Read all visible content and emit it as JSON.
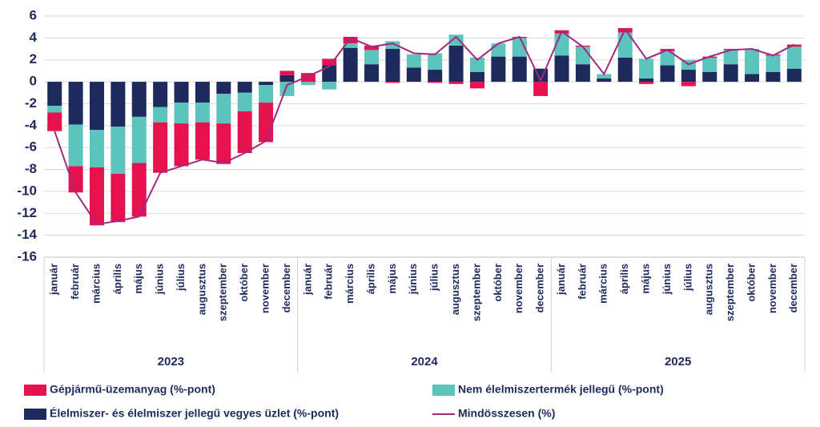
{
  "chart_data": {
    "type": "bar",
    "categories": [
      "január",
      "február",
      "március",
      "április",
      "május",
      "június",
      "július",
      "augusztus",
      "szeptember",
      "október",
      "november",
      "december",
      "január",
      "február",
      "március",
      "április",
      "május",
      "június",
      "július",
      "augusztus",
      "szeptember",
      "október",
      "november",
      "december",
      "január",
      "február",
      "március",
      "április",
      "május",
      "június",
      "július",
      "augusztus",
      "szeptember",
      "október",
      "november",
      "december"
    ],
    "groups": [
      "2023",
      "2024",
      "2025"
    ],
    "series": [
      {
        "name": "Gépjármű-üzemanyag (%-pont)",
        "type": "bar",
        "color": "#e5124f",
        "values": [
          -1.7,
          -2.4,
          -5.3,
          -4.4,
          -4.9,
          -4.6,
          -3.9,
          -3.4,
          -3.7,
          -3.8,
          -3.6,
          0.4,
          0.8,
          0.6,
          0.6,
          0.4,
          -0.1,
          0.0,
          -0.1,
          -0.2,
          -0.6,
          0.0,
          0.1,
          -1.3,
          0.3,
          0.1,
          0.0,
          0.4,
          -0.2,
          0.2,
          -0.4,
          0.1,
          0.1,
          0.0,
          0.1,
          0.2
        ]
      },
      {
        "name": "Nem élelmiszertermék jellegű (%-pont)",
        "type": "bar",
        "color": "#5cc3bd",
        "values": [
          -0.6,
          -3.8,
          -3.4,
          -4.3,
          -4.2,
          -1.4,
          -1.9,
          -1.8,
          -2.7,
          -1.7,
          -1.6,
          -1.3,
          -0.3,
          -0.7,
          0.4,
          1.3,
          0.7,
          1.2,
          1.5,
          1.0,
          1.3,
          1.2,
          1.7,
          0.0,
          2.0,
          1.6,
          0.4,
          2.3,
          1.8,
          1.3,
          0.9,
          1.3,
          1.3,
          2.3,
          1.5,
          2.0
        ]
      },
      {
        "name": "Élelmiszer- és élelmiszer jellegű vegyes üzlet (%-pont)",
        "type": "bar",
        "color": "#1e2a5c",
        "values": [
          -2.2,
          -3.9,
          -4.4,
          -4.1,
          -3.2,
          -2.3,
          -1.9,
          -1.9,
          -1.1,
          -1.0,
          -0.3,
          0.6,
          0.0,
          1.5,
          3.1,
          1.6,
          3.0,
          1.3,
          1.1,
          3.3,
          0.9,
          2.3,
          2.3,
          1.2,
          2.4,
          1.6,
          0.3,
          2.2,
          0.3,
          1.5,
          1.1,
          0.9,
          1.6,
          0.7,
          0.9,
          1.2
        ]
      },
      {
        "name": "Mindösszesen (%)",
        "type": "line",
        "color": "#a3287e",
        "values": [
          -4.5,
          -10.1,
          -13.0,
          -12.7,
          -12.3,
          -8.3,
          -7.7,
          -7.1,
          -7.4,
          -6.5,
          -5.4,
          -0.3,
          0.5,
          1.4,
          4.0,
          3.2,
          3.5,
          2.6,
          2.5,
          4.1,
          2.0,
          3.5,
          4.1,
          0.1,
          4.6,
          3.2,
          0.7,
          4.8,
          2.1,
          2.9,
          1.6,
          2.3,
          2.9,
          3.0,
          2.4,
          3.4
        ]
      }
    ],
    "ylim": [
      -16,
      6
    ],
    "yticks": [
      -16,
      -14,
      -12,
      -10,
      -8,
      -6,
      -4,
      -2,
      0,
      2,
      4,
      6
    ],
    "grid": true
  }
}
